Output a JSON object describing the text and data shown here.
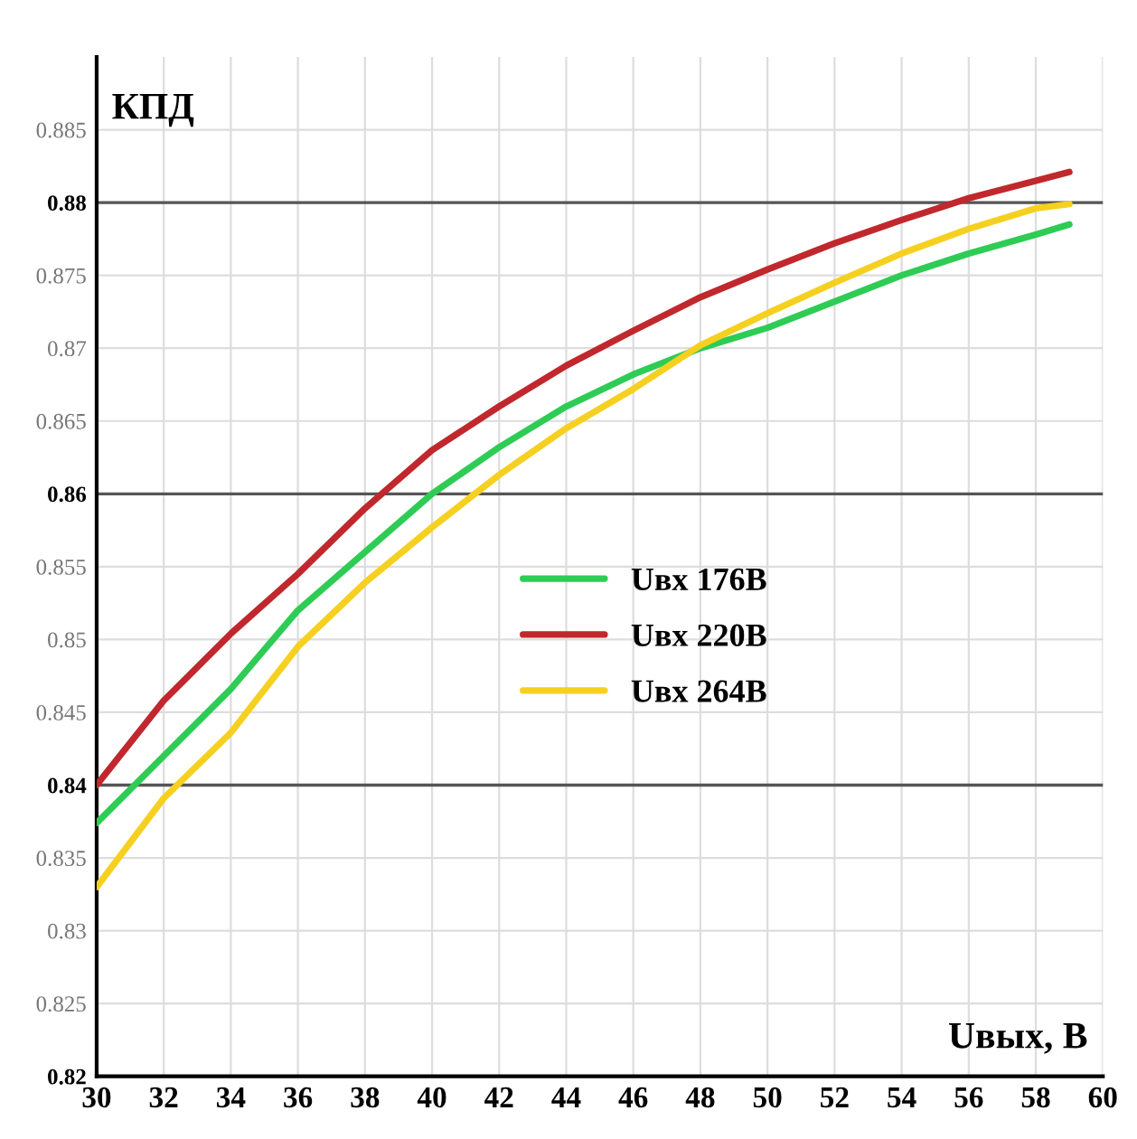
{
  "chart_data": {
    "type": "line",
    "xlabel": "Uвых, В",
    "ylabel": "КПД",
    "x": [
      30,
      32,
      34,
      36,
      38,
      40,
      42,
      44,
      46,
      48,
      50,
      52,
      54,
      56,
      58,
      59
    ],
    "series": [
      {
        "name": "Uвх 176В",
        "color": "#2ecc55",
        "values": [
          0.8374,
          0.842,
          0.8466,
          0.852,
          0.856,
          0.86,
          0.8632,
          0.866,
          0.8682,
          0.87,
          0.8714,
          0.8732,
          0.875,
          0.8765,
          0.8778,
          0.8785
        ]
      },
      {
        "name": "Uвх 220В",
        "color": "#c0282d",
        "values": [
          0.84,
          0.8458,
          0.8504,
          0.8545,
          0.859,
          0.863,
          0.866,
          0.8688,
          0.8712,
          0.8735,
          0.8754,
          0.8772,
          0.8788,
          0.8803,
          0.8815,
          0.8821
        ]
      },
      {
        "name": "Uвх 264В",
        "color": "#f5d020",
        "values": [
          0.833,
          0.8391,
          0.8436,
          0.8495,
          0.8539,
          0.8577,
          0.8613,
          0.8645,
          0.8672,
          0.8702,
          0.8724,
          0.8745,
          0.8765,
          0.8782,
          0.8796,
          0.8799
        ]
      }
    ],
    "xlim": [
      30,
      60
    ],
    "xticks": [
      30,
      32,
      34,
      36,
      38,
      40,
      42,
      44,
      46,
      48,
      50,
      52,
      54,
      56,
      58,
      60
    ],
    "ylim": [
      0.82,
      0.89
    ],
    "yticks": [
      0.82,
      0.825,
      0.83,
      0.835,
      0.84,
      0.845,
      0.85,
      0.855,
      0.86,
      0.865,
      0.87,
      0.875,
      0.88,
      0.885
    ],
    "grid": true,
    "legend": "center",
    "line_style": "solid",
    "marker": "none"
  }
}
